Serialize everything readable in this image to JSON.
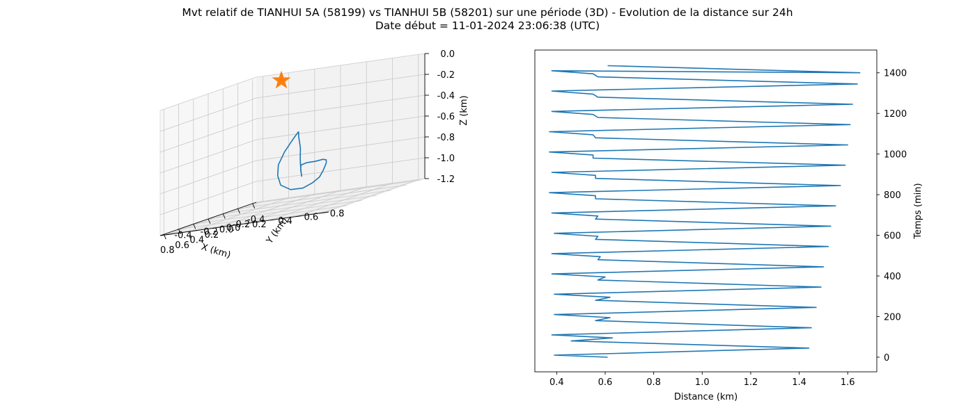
{
  "figure": {
    "title": "Mvt relatif de TIANHUI 5A (58199) vs TIANHUI 5B (58201) sur une période (3D) - Evolution de la distance sur 24h",
    "subtitle": "Date début = 11-01-2024 23:06:38 (UTC)"
  },
  "colors": {
    "series": "#1f77b4",
    "marker": "#ff7f0e",
    "grid": "#b0b0b0",
    "pane": "#f2f2f2"
  },
  "chart_data": [
    {
      "type": "line",
      "projection": "3d",
      "xlabel": "X (km)",
      "ylabel": "Y (km)",
      "zlabel": "Z (km)",
      "xlim": [
        -0.45,
        0.85
      ],
      "ylim": [
        -0.45,
        0.85
      ],
      "zlim": [
        -1.2,
        0.0
      ],
      "xticks": [
        "-0.4",
        "-0.2",
        "0.0",
        "0.2",
        "0.4",
        "0.6",
        "0.8"
      ],
      "yticks": [
        "-0.4",
        "-0.2",
        "0.0",
        "0.2",
        "0.4",
        "0.6",
        "0.8"
      ],
      "zticks": [
        "0.0",
        "-0.2",
        "-0.4",
        "-0.6",
        "-0.8",
        "-1.0",
        "-1.2"
      ],
      "grid": true,
      "marker": {
        "symbol": "star",
        "x": 0.0,
        "y": 0.0,
        "z": 0.0
      },
      "series": [
        {
          "points": [
            [
              -0.32,
              -0.05,
              -0.56
            ],
            [
              -0.27,
              -0.02,
              -0.6
            ],
            [
              -0.17,
              0.05,
              -0.7
            ],
            [
              -0.08,
              0.1,
              -0.78
            ],
            [
              -0.03,
              0.13,
              -0.83
            ],
            [
              -0.02,
              0.14,
              -0.9
            ],
            [
              -0.03,
              0.14,
              -0.95
            ],
            [
              0.02,
              0.16,
              -0.88
            ],
            [
              0.05,
              0.18,
              -0.83
            ],
            [
              0.15,
              0.28,
              -0.8
            ],
            [
              0.28,
              0.42,
              -0.78
            ],
            [
              0.42,
              0.56,
              -0.75
            ],
            [
              0.55,
              0.66,
              -0.74
            ],
            [
              0.62,
              0.7,
              -0.76
            ],
            [
              0.66,
              0.7,
              -0.82
            ],
            [
              0.66,
              0.67,
              -0.88
            ],
            [
              0.63,
              0.6,
              -0.93
            ],
            [
              0.55,
              0.48,
              -0.98
            ],
            [
              0.4,
              0.3,
              -1.0
            ],
            [
              0.22,
              0.12,
              -0.97
            ],
            [
              0.05,
              0.0,
              -0.9
            ],
            [
              -0.1,
              -0.08,
              -0.82
            ],
            [
              -0.22,
              -0.1,
              -0.72
            ],
            [
              -0.3,
              -0.08,
              -0.62
            ],
            [
              -0.32,
              -0.05,
              -0.56
            ]
          ]
        }
      ]
    },
    {
      "type": "line",
      "xlabel": "Distance (km)",
      "ylabel": "Temps (min)",
      "xlim": [
        0.31,
        1.72
      ],
      "ylim": [
        -72,
        1512
      ],
      "xticks": [
        0.4,
        0.6,
        0.8,
        1.0,
        1.2,
        1.4,
        1.6
      ],
      "yticks": [
        0,
        200,
        400,
        600,
        800,
        1000,
        1200,
        1400
      ],
      "grid": false,
      "series": [
        {
          "x": [
            0.61,
            0.39,
            1.44,
            0.46,
            0.63,
            0.38,
            1.45,
            0.56,
            0.62,
            0.39,
            1.47,
            0.56,
            0.62,
            0.39,
            1.49,
            0.57,
            0.6,
            0.38,
            1.5,
            0.57,
            0.58,
            0.38,
            1.52,
            0.56,
            0.57,
            0.39,
            1.53,
            0.56,
            0.57,
            0.38,
            1.55,
            0.56,
            0.56,
            0.37,
            1.57,
            0.56,
            0.56,
            0.38,
            1.59,
            0.55,
            0.55,
            0.37,
            1.6,
            0.56,
            0.55,
            0.37,
            1.61,
            0.57,
            0.55,
            0.38,
            1.62,
            0.57,
            0.55,
            0.38,
            1.64,
            0.57,
            0.55,
            0.38,
            1.65,
            0.61
          ],
          "y": [
            0,
            10,
            45,
            80,
            95,
            110,
            145,
            180,
            195,
            210,
            245,
            280,
            295,
            310,
            345,
            380,
            395,
            410,
            445,
            480,
            495,
            510,
            545,
            580,
            595,
            610,
            645,
            680,
            695,
            710,
            745,
            780,
            795,
            810,
            845,
            880,
            895,
            910,
            945,
            980,
            995,
            1010,
            1045,
            1080,
            1095,
            1110,
            1145,
            1180,
            1195,
            1210,
            1245,
            1280,
            1295,
            1310,
            1345,
            1380,
            1395,
            1410,
            1400,
            1435
          ]
        }
      ]
    }
  ]
}
